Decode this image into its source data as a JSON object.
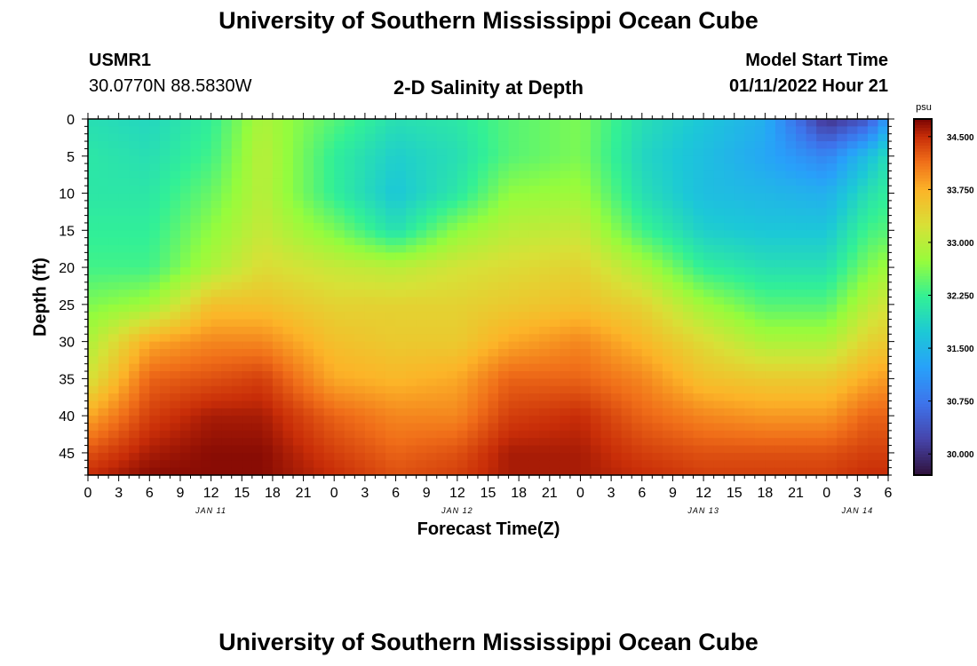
{
  "page": {
    "title": "University of Southern Mississippi Ocean Cube",
    "footer_title": "University of Southern Mississippi Ocean Cube",
    "station_id": "USMR1",
    "coordinates": "30.0770N  88.5830W",
    "plot_title": "2-D Salinity at Depth",
    "model_start_label": "Model Start Time",
    "model_start_value": "01/11/2022 Hour 21"
  },
  "chart_data": {
    "type": "heatmap",
    "title": "2-D Salinity at Depth",
    "xlabel": "Forecast Time(Z)",
    "ylabel": "Depth (ft)",
    "colorbar_label": "psu",
    "x_range_hours": [
      0,
      78
    ],
    "y_range_ft": [
      0,
      48
    ],
    "y_ticks": [
      0,
      5,
      10,
      15,
      20,
      25,
      30,
      35,
      40,
      45
    ],
    "x_ticks": [
      {
        "h": 0,
        "label": "0"
      },
      {
        "h": 3,
        "label": "3"
      },
      {
        "h": 6,
        "label": "6"
      },
      {
        "h": 9,
        "label": "9"
      },
      {
        "h": 12,
        "label": "12"
      },
      {
        "h": 15,
        "label": "15"
      },
      {
        "h": 18,
        "label": "18"
      },
      {
        "h": 21,
        "label": "21"
      },
      {
        "h": 24,
        "label": "0"
      },
      {
        "h": 27,
        "label": "3"
      },
      {
        "h": 30,
        "label": "6"
      },
      {
        "h": 33,
        "label": "9"
      },
      {
        "h": 36,
        "label": "12"
      },
      {
        "h": 39,
        "label": "15"
      },
      {
        "h": 42,
        "label": "18"
      },
      {
        "h": 45,
        "label": "21"
      },
      {
        "h": 48,
        "label": "0"
      },
      {
        "h": 51,
        "label": "3"
      },
      {
        "h": 54,
        "label": "6"
      },
      {
        "h": 57,
        "label": "9"
      },
      {
        "h": 60,
        "label": "12"
      },
      {
        "h": 63,
        "label": "15"
      },
      {
        "h": 66,
        "label": "18"
      },
      {
        "h": 69,
        "label": "21"
      },
      {
        "h": 72,
        "label": "0"
      },
      {
        "h": 75,
        "label": "3"
      },
      {
        "h": 78,
        "label": "6"
      }
    ],
    "day_labels": [
      {
        "h": 12,
        "label": "JAN 11"
      },
      {
        "h": 36,
        "label": "JAN 12"
      },
      {
        "h": 60,
        "label": "JAN 13"
      },
      {
        "h": 75,
        "label": "JAN 14"
      }
    ],
    "colorbar": {
      "min": 29.7,
      "max": 34.75,
      "ticks": [
        "34.500",
        "33.750",
        "33.000",
        "32.250",
        "31.500",
        "30.750",
        "30.000"
      ]
    },
    "grid_hours": [
      0,
      6,
      12,
      17,
      24,
      30,
      36,
      41,
      48,
      54,
      60,
      66,
      72,
      76,
      78
    ],
    "grid_depths": [
      0,
      5,
      10,
      15,
      20,
      25,
      30,
      35,
      40,
      45,
      48
    ],
    "salinity_psu": [
      [
        32.0,
        32.1,
        32.1,
        32.2,
        32.3,
        32.6,
        32.9,
        33.2,
        33.8,
        34.3,
        34.5
      ],
      [
        31.9,
        32.0,
        32.1,
        32.2,
        32.3,
        32.8,
        33.8,
        34.2,
        34.4,
        34.6,
        34.7
      ],
      [
        32.2,
        32.3,
        32.5,
        32.7,
        32.9,
        33.6,
        34.0,
        34.3,
        34.6,
        34.7,
        34.7
      ],
      [
        32.9,
        33.0,
        33.0,
        33.1,
        33.3,
        33.6,
        34.0,
        34.4,
        34.6,
        34.7,
        34.7
      ],
      [
        32.4,
        32.2,
        32.2,
        32.6,
        33.1,
        33.4,
        33.6,
        33.8,
        34.2,
        34.4,
        34.5
      ],
      [
        32.0,
        31.8,
        31.7,
        32.0,
        33.0,
        33.4,
        33.5,
        33.7,
        34.0,
        34.2,
        34.3
      ],
      [
        32.1,
        32.0,
        32.1,
        32.7,
        33.2,
        33.4,
        33.5,
        33.8,
        34.0,
        34.3,
        34.4
      ],
      [
        32.4,
        32.4,
        32.7,
        33.0,
        33.3,
        33.5,
        33.8,
        34.2,
        34.4,
        34.6,
        34.6
      ],
      [
        32.6,
        32.6,
        32.8,
        33.1,
        33.4,
        33.6,
        34.0,
        34.2,
        34.5,
        34.6,
        34.6
      ],
      [
        32.0,
        31.9,
        32.0,
        32.3,
        32.9,
        33.4,
        33.7,
        34.0,
        34.2,
        34.4,
        34.5
      ],
      [
        31.7,
        31.6,
        31.6,
        31.8,
        32.2,
        32.8,
        33.3,
        33.6,
        34.0,
        34.3,
        34.4
      ],
      [
        31.4,
        31.3,
        31.5,
        31.7,
        32.0,
        32.4,
        32.9,
        33.5,
        33.9,
        34.3,
        34.4
      ],
      [
        30.0,
        30.9,
        31.4,
        31.7,
        32.0,
        32.4,
        32.9,
        33.5,
        33.9,
        34.3,
        34.4
      ],
      [
        30.4,
        31.6,
        32.0,
        32.3,
        32.6,
        33.0,
        33.4,
        33.8,
        34.2,
        34.4,
        34.5
      ],
      [
        31.2,
        32.0,
        32.2,
        32.4,
        32.8,
        33.2,
        33.5,
        33.9,
        34.2,
        34.4,
        34.5
      ]
    ]
  }
}
